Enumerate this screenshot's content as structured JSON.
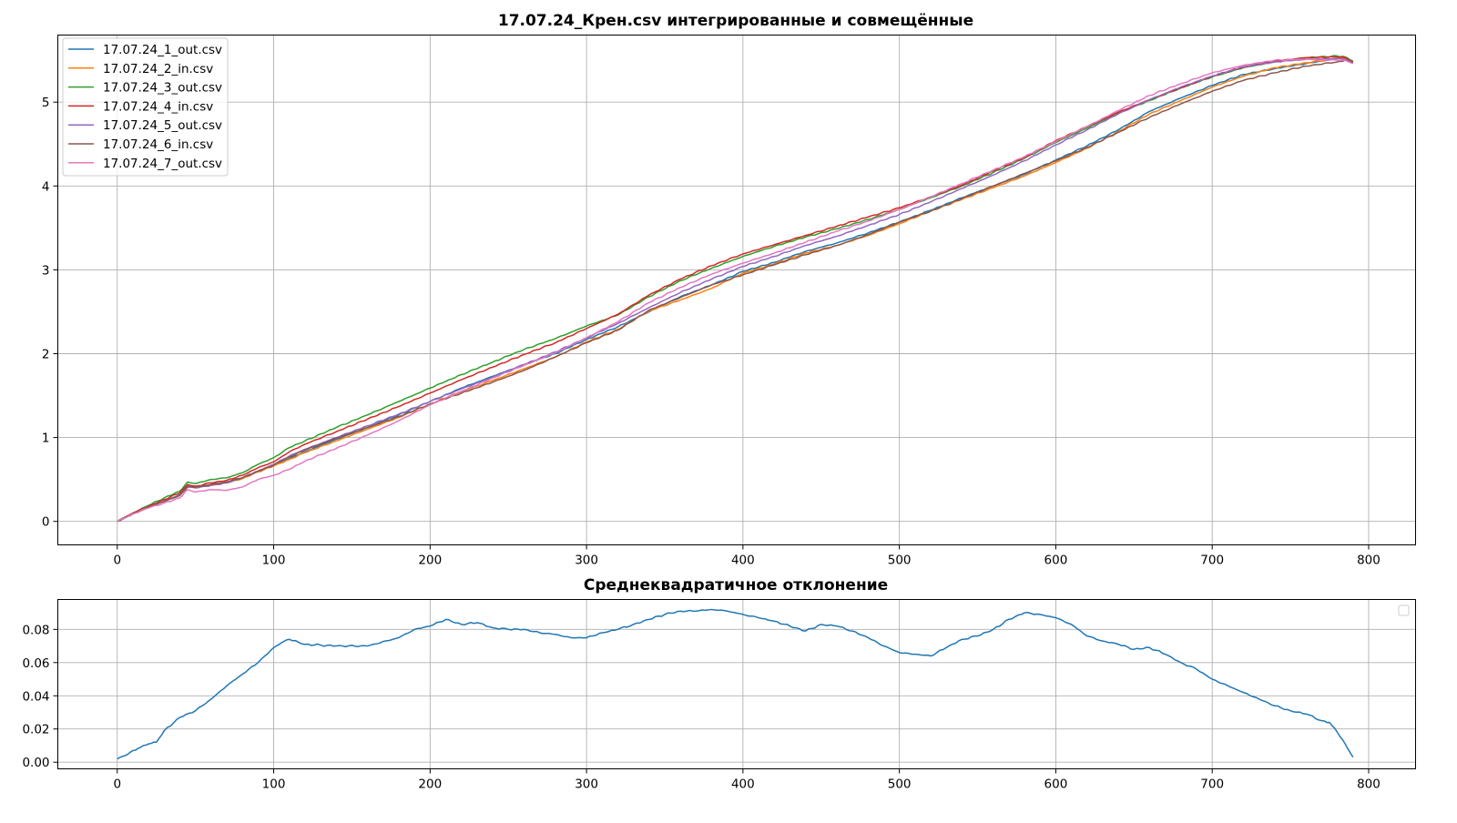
{
  "chart_data": [
    {
      "type": "line",
      "title": "17.07.24_Крен.csv интегрированные и совмещённые",
      "xlabel": "",
      "ylabel": "",
      "xlim": [
        -38,
        830
      ],
      "ylim": [
        -0.28,
        5.8
      ],
      "xticks": [
        0,
        100,
        200,
        300,
        400,
        500,
        600,
        700,
        800
      ],
      "yticks": [
        0,
        1,
        2,
        3,
        4,
        5
      ],
      "grid": true,
      "legend": "top-left",
      "x": [
        0,
        10,
        20,
        30,
        40,
        45,
        50,
        60,
        70,
        80,
        90,
        100,
        110,
        120,
        140,
        160,
        180,
        200,
        220,
        240,
        260,
        280,
        300,
        320,
        340,
        360,
        380,
        400,
        420,
        440,
        460,
        480,
        500,
        520,
        540,
        560,
        580,
        600,
        620,
        640,
        660,
        680,
        700,
        720,
        740,
        760,
        780,
        785,
        790
      ],
      "series": [
        {
          "name": "17.07.24_1_out.csv",
          "color": "#1f77b4",
          "values": [
            0,
            0.09,
            0.17,
            0.24,
            0.32,
            0.42,
            0.41,
            0.44,
            0.47,
            0.52,
            0.6,
            0.67,
            0.75,
            0.83,
            0.98,
            1.12,
            1.27,
            1.43,
            1.59,
            1.73,
            1.87,
            2.0,
            2.17,
            2.32,
            2.5,
            2.68,
            2.82,
            2.98,
            3.09,
            3.22,
            3.32,
            3.44,
            3.57,
            3.71,
            3.86,
            4.0,
            4.14,
            4.31,
            4.48,
            4.67,
            4.89,
            5.05,
            5.2,
            5.33,
            5.4,
            5.46,
            5.52,
            5.53,
            5.48
          ]
        },
        {
          "name": "17.07.24_2_in.csv",
          "color": "#ff7f0e",
          "values": [
            0,
            0.09,
            0.17,
            0.24,
            0.31,
            0.41,
            0.4,
            0.43,
            0.46,
            0.51,
            0.59,
            0.66,
            0.74,
            0.82,
            0.96,
            1.1,
            1.24,
            1.4,
            1.55,
            1.68,
            1.82,
            1.96,
            2.14,
            2.29,
            2.51,
            2.64,
            2.78,
            2.96,
            3.07,
            3.2,
            3.29,
            3.41,
            3.55,
            3.7,
            3.84,
            3.98,
            4.12,
            4.28,
            4.45,
            4.65,
            4.86,
            5.02,
            5.18,
            5.31,
            5.41,
            5.47,
            5.52,
            5.53,
            5.48
          ]
        },
        {
          "name": "17.07.24_3_out.csv",
          "color": "#2ca02c",
          "values": [
            0,
            0.1,
            0.19,
            0.28,
            0.36,
            0.47,
            0.45,
            0.5,
            0.52,
            0.58,
            0.68,
            0.76,
            0.88,
            0.96,
            1.12,
            1.27,
            1.43,
            1.59,
            1.75,
            1.9,
            2.05,
            2.18,
            2.33,
            2.46,
            2.68,
            2.87,
            3.02,
            3.16,
            3.28,
            3.39,
            3.49,
            3.6,
            3.72,
            3.86,
            4.0,
            4.16,
            4.33,
            4.52,
            4.69,
            4.87,
            5.02,
            5.17,
            5.3,
            5.41,
            5.48,
            5.53,
            5.55,
            5.54,
            5.49
          ]
        },
        {
          "name": "17.07.24_4_in.csv",
          "color": "#d62728",
          "values": [
            0,
            0.1,
            0.18,
            0.26,
            0.34,
            0.44,
            0.42,
            0.46,
            0.49,
            0.55,
            0.64,
            0.71,
            0.83,
            0.92,
            1.07,
            1.22,
            1.37,
            1.53,
            1.69,
            1.84,
            1.99,
            2.13,
            2.3,
            2.47,
            2.7,
            2.89,
            3.05,
            3.19,
            3.3,
            3.41,
            3.52,
            3.63,
            3.74,
            3.87,
            4.01,
            4.18,
            4.34,
            4.54,
            4.71,
            4.88,
            5.03,
            5.17,
            5.31,
            5.42,
            5.49,
            5.53,
            5.54,
            5.53,
            5.48
          ]
        },
        {
          "name": "17.07.24_5_out.csv",
          "color": "#9467bd",
          "values": [
            0,
            0.09,
            0.17,
            0.24,
            0.31,
            0.41,
            0.4,
            0.43,
            0.46,
            0.52,
            0.6,
            0.68,
            0.78,
            0.86,
            1.0,
            1.14,
            1.28,
            1.43,
            1.58,
            1.72,
            1.87,
            2.02,
            2.19,
            2.36,
            2.55,
            2.73,
            2.89,
            3.04,
            3.16,
            3.29,
            3.4,
            3.53,
            3.66,
            3.81,
            3.97,
            4.13,
            4.3,
            4.49,
            4.67,
            4.86,
            5.03,
            5.18,
            5.31,
            5.42,
            5.48,
            5.51,
            5.52,
            5.51,
            5.47
          ]
        },
        {
          "name": "17.07.24_6_in.csv",
          "color": "#8c564b",
          "values": [
            0,
            0.09,
            0.17,
            0.24,
            0.31,
            0.42,
            0.41,
            0.44,
            0.47,
            0.52,
            0.6,
            0.67,
            0.77,
            0.85,
            0.99,
            1.12,
            1.25,
            1.4,
            1.53,
            1.66,
            1.8,
            1.96,
            2.13,
            2.28,
            2.52,
            2.67,
            2.82,
            2.94,
            3.06,
            3.18,
            3.29,
            3.42,
            3.57,
            3.7,
            3.85,
            4.0,
            4.15,
            4.3,
            4.46,
            4.64,
            4.82,
            4.98,
            5.13,
            5.26,
            5.35,
            5.43,
            5.48,
            5.5,
            5.47
          ]
        },
        {
          "name": "17.07.24_7_out.csv",
          "color": "#e377c2",
          "values": [
            0,
            0.09,
            0.16,
            0.22,
            0.28,
            0.38,
            0.35,
            0.38,
            0.37,
            0.41,
            0.5,
            0.55,
            0.62,
            0.72,
            0.87,
            1.03,
            1.2,
            1.39,
            1.55,
            1.71,
            1.86,
            2.01,
            2.19,
            2.38,
            2.61,
            2.79,
            2.95,
            3.08,
            3.2,
            3.33,
            3.46,
            3.58,
            3.72,
            3.87,
            4.03,
            4.19,
            4.35,
            4.53,
            4.71,
            4.9,
            5.08,
            5.22,
            5.35,
            5.44,
            5.5,
            5.51,
            5.5,
            5.5,
            5.46
          ]
        }
      ]
    },
    {
      "type": "line",
      "title": "Среднеквадратичное отклонение",
      "xlabel": "",
      "ylabel": "",
      "xlim": [
        -38,
        830
      ],
      "ylim": [
        -0.004,
        0.098
      ],
      "xticks": [
        0,
        100,
        200,
        300,
        400,
        500,
        600,
        700,
        800
      ],
      "yticks": [
        "0.00",
        "0.02",
        "0.04",
        "0.06",
        "0.08"
      ],
      "grid": true,
      "legend": "top-right (empty)",
      "x": [
        0,
        5,
        10,
        15,
        20,
        25,
        30,
        40,
        50,
        60,
        70,
        80,
        90,
        100,
        105,
        110,
        120,
        140,
        160,
        180,
        190,
        200,
        210,
        220,
        230,
        240,
        250,
        260,
        270,
        280,
        290,
        300,
        310,
        320,
        330,
        340,
        350,
        360,
        370,
        380,
        390,
        400,
        410,
        420,
        430,
        440,
        450,
        460,
        470,
        480,
        490,
        500,
        510,
        520,
        530,
        540,
        550,
        560,
        570,
        580,
        590,
        600,
        610,
        620,
        630,
        640,
        650,
        660,
        670,
        680,
        690,
        700,
        710,
        720,
        730,
        740,
        750,
        760,
        770,
        775,
        780,
        785,
        790
      ],
      "values": [
        0.002,
        0.004,
        0.007,
        0.009,
        0.011,
        0.012,
        0.019,
        0.027,
        0.031,
        0.038,
        0.046,
        0.053,
        0.06,
        0.069,
        0.072,
        0.074,
        0.071,
        0.07,
        0.07,
        0.075,
        0.08,
        0.082,
        0.086,
        0.083,
        0.084,
        0.081,
        0.08,
        0.08,
        0.078,
        0.077,
        0.075,
        0.075,
        0.078,
        0.08,
        0.083,
        0.086,
        0.089,
        0.091,
        0.091,
        0.092,
        0.091,
        0.089,
        0.087,
        0.085,
        0.082,
        0.079,
        0.083,
        0.082,
        0.079,
        0.075,
        0.07,
        0.066,
        0.065,
        0.064,
        0.069,
        0.074,
        0.076,
        0.08,
        0.086,
        0.09,
        0.089,
        0.087,
        0.083,
        0.076,
        0.073,
        0.071,
        0.068,
        0.069,
        0.065,
        0.06,
        0.056,
        0.05,
        0.046,
        0.042,
        0.038,
        0.034,
        0.031,
        0.029,
        0.025,
        0.024,
        0.018,
        0.011,
        0.003
      ]
    }
  ]
}
